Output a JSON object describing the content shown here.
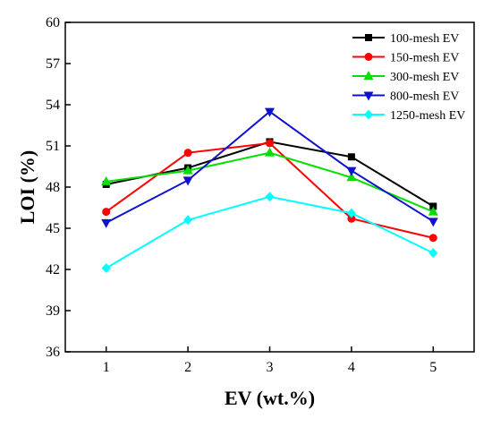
{
  "chart_data": {
    "type": "line",
    "title": "",
    "xlabel": "EV (wt.%)",
    "ylabel": "LOI (%)",
    "x": [
      1,
      2,
      3,
      4,
      5
    ],
    "x_tick_labels": [
      "1",
      "2",
      "3",
      "4",
      "5"
    ],
    "xlim": [
      0.5,
      5.5
    ],
    "ylim": [
      36,
      60
    ],
    "y_ticks": [
      36,
      39,
      42,
      45,
      48,
      51,
      54,
      57,
      60
    ],
    "y_tick_labels": [
      "36",
      "39",
      "42",
      "45",
      "48",
      "51",
      "54",
      "57",
      "60"
    ],
    "grid": false,
    "legend_position": "top-right",
    "series": [
      {
        "name": "100-mesh EV",
        "values": [
          48.2,
          49.4,
          51.3,
          50.2,
          46.6
        ],
        "color": "#000000",
        "marker": "square"
      },
      {
        "name": "150-mesh EV",
        "values": [
          46.2,
          50.5,
          51.2,
          45.7,
          44.3
        ],
        "color": "#ff0000",
        "marker": "circle"
      },
      {
        "name": "300-mesh EV",
        "values": [
          48.4,
          49.2,
          50.5,
          48.7,
          46.2
        ],
        "color": "#00e000",
        "marker": "triangle-up"
      },
      {
        "name": "800-mesh EV",
        "values": [
          45.4,
          48.5,
          53.5,
          49.2,
          45.5
        ],
        "color": "#1010d0",
        "marker": "triangle-down"
      },
      {
        "name": "1250-mesh EV",
        "values": [
          42.1,
          45.6,
          47.3,
          46.1,
          43.2
        ],
        "color": "#00ffff",
        "marker": "diamond"
      }
    ]
  }
}
